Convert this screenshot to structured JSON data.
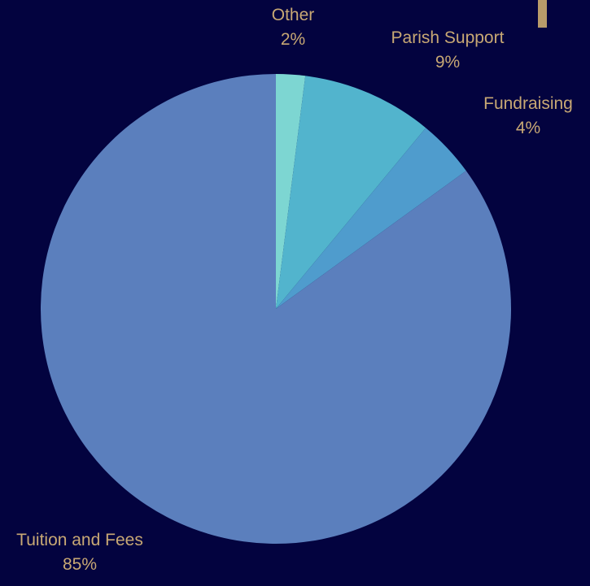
{
  "colors": {
    "background": "#03033f",
    "label_text": "#c8a874",
    "accent_bar": "#b89b6a"
  },
  "chart_data": {
    "type": "pie",
    "title": "",
    "slices": [
      {
        "name": "Other",
        "value": 2,
        "percent_label": "2%",
        "color": "#7dd6d2"
      },
      {
        "name": "Parish Support",
        "value": 9,
        "percent_label": "9%",
        "color": "#52b4cd"
      },
      {
        "name": "Fundraising",
        "value": 4,
        "percent_label": "4%",
        "color": "#4f9ccd"
      },
      {
        "name": "Tuition and Fees",
        "value": 85,
        "percent_label": "85%",
        "color": "#5b7fbd"
      }
    ],
    "start_angle": "12 o'clock",
    "direction": "clockwise",
    "labels_position": "outside"
  }
}
